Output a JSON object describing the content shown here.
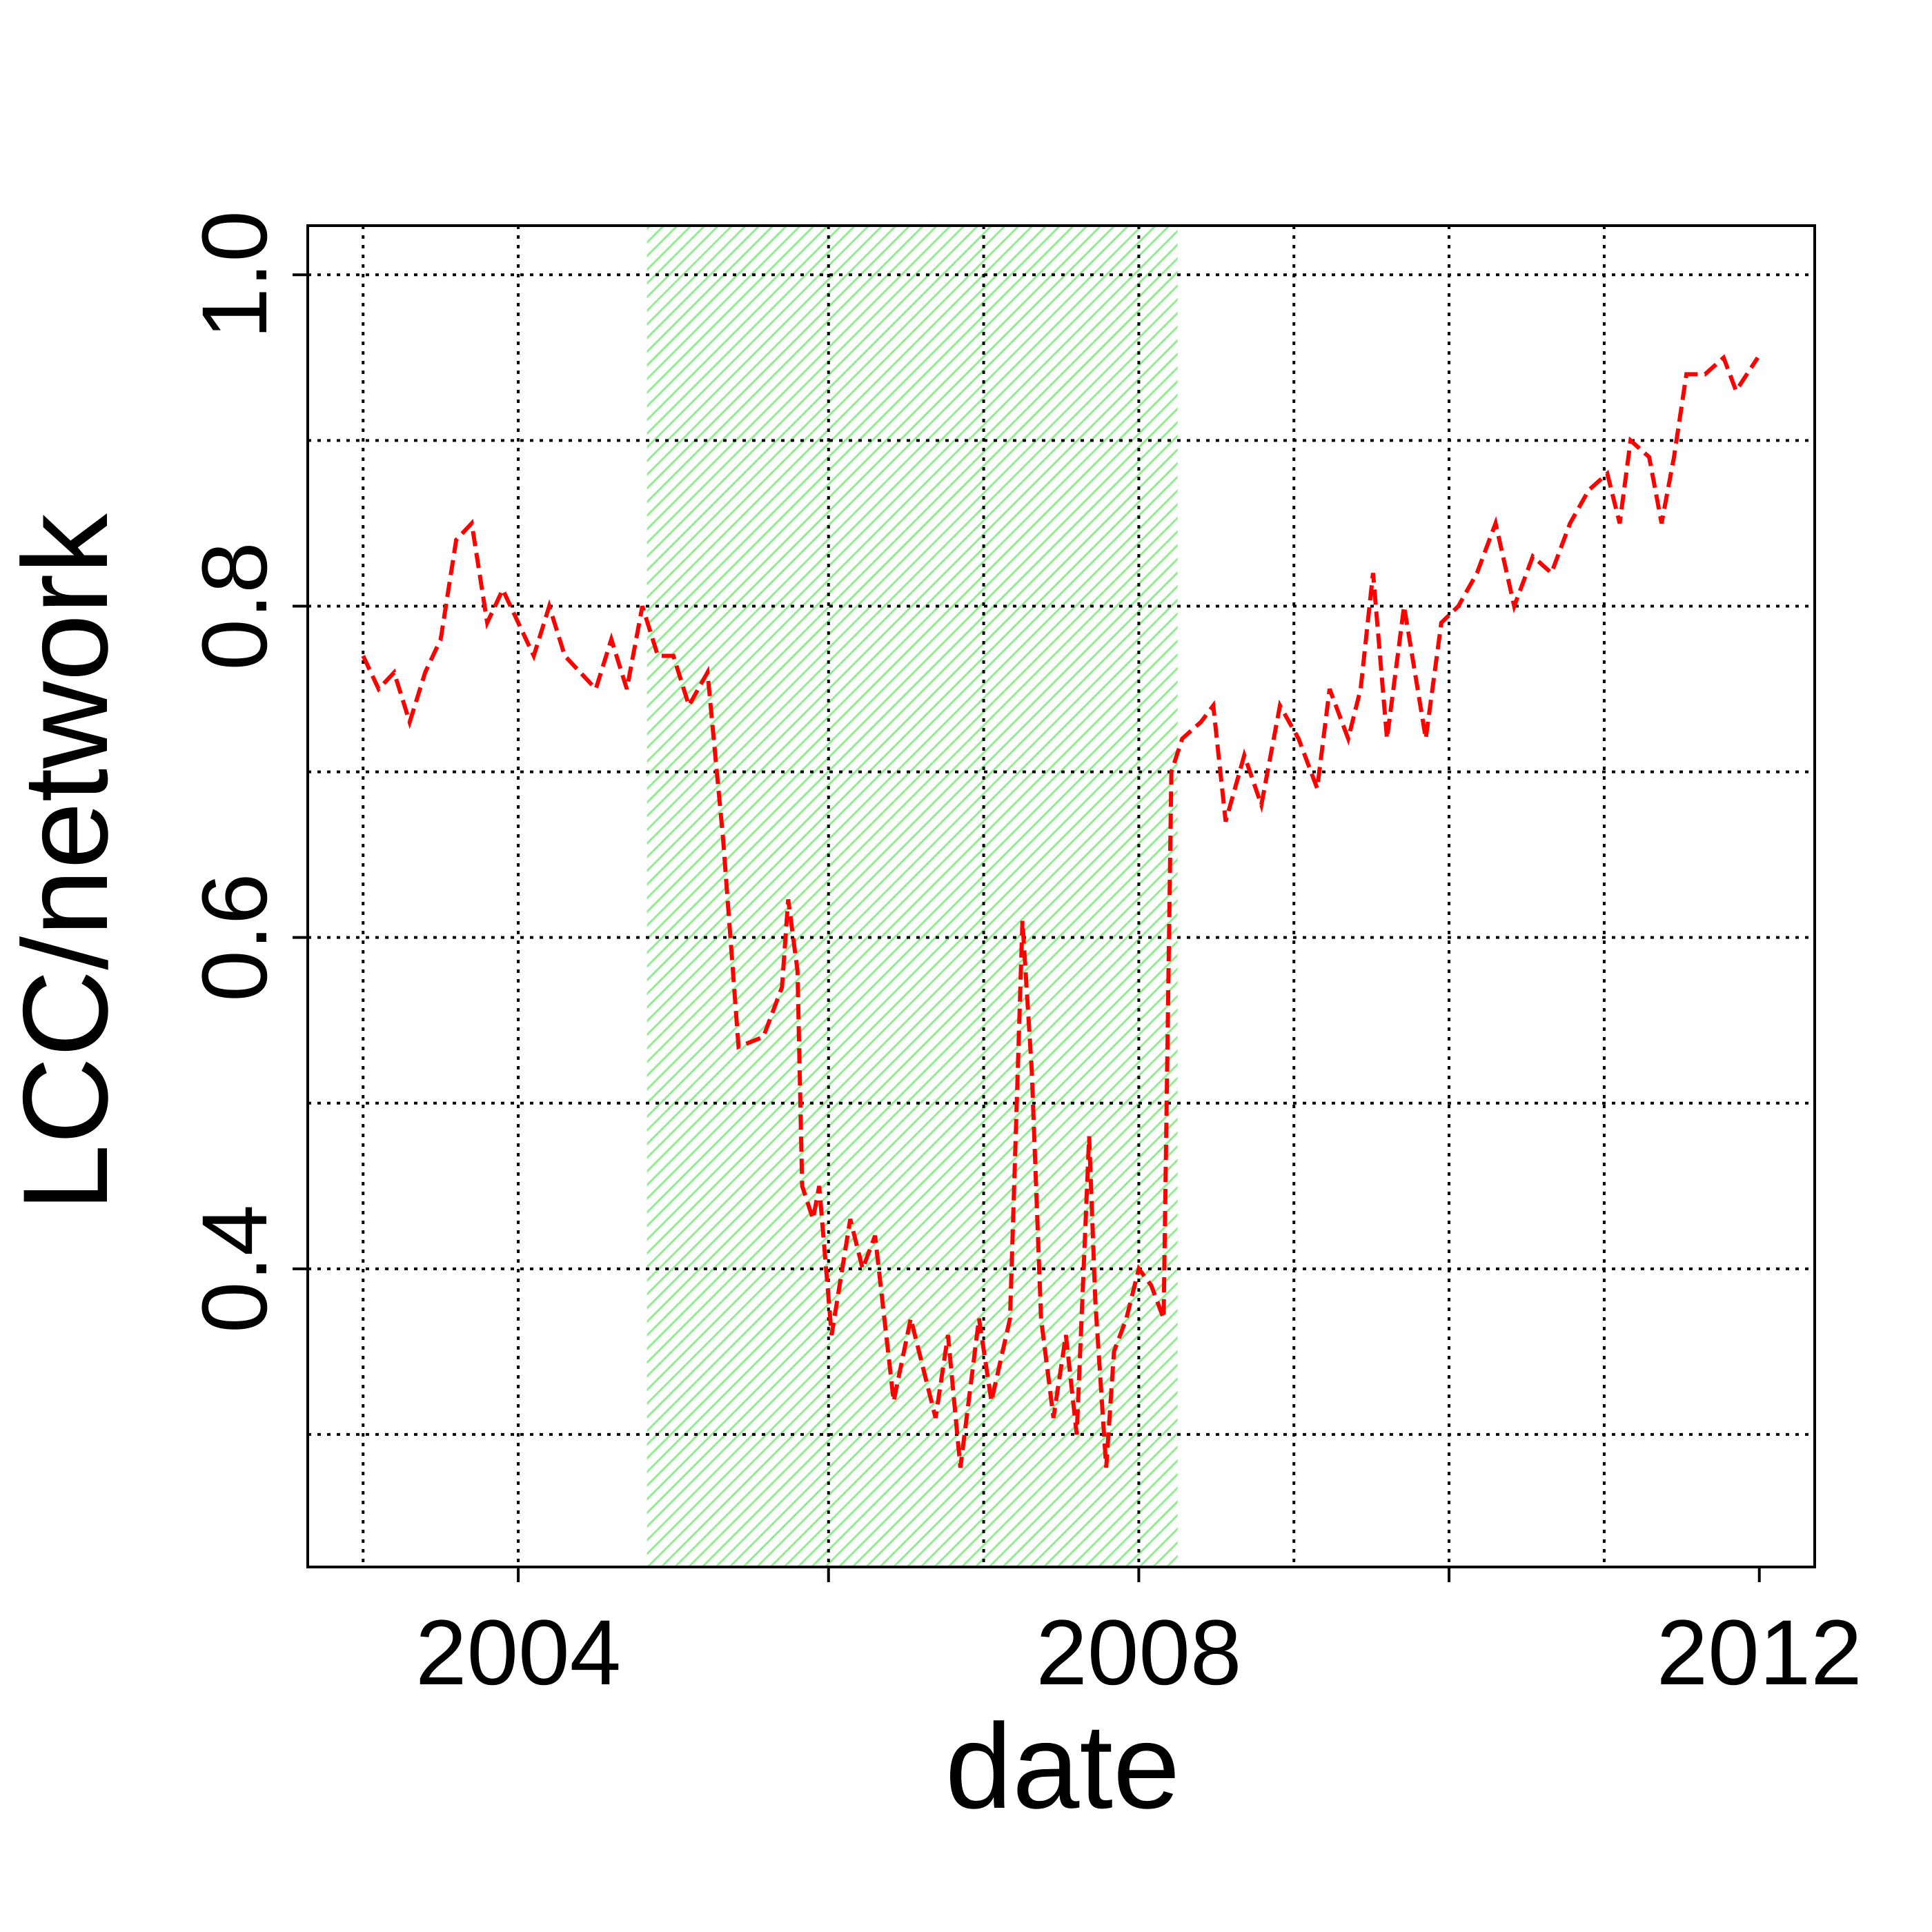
{
  "chart_data": {
    "type": "line",
    "x_label": "date",
    "y_label": "LCC/network",
    "xlim": [
      2002.643,
      2012.357
    ],
    "ylim": [
      0.22,
      1.0297
    ],
    "xticks": [
      2004,
      2008,
      2012
    ],
    "x_minor_ticks": [
      2006,
      2010
    ],
    "yticks": [
      0.4,
      0.6,
      0.8,
      {
        "value": 1.0,
        "label": "1.0"
      }
    ],
    "x_grid": [
      2003,
      2004,
      2006,
      2007,
      2008,
      2009,
      2010,
      2011
    ],
    "y_grid": [
      0.3,
      0.4,
      0.5,
      0.6,
      0.7,
      0.8,
      0.9,
      1.0
    ],
    "shade": [
      2004.83,
      2008.25
    ],
    "shade_color": "#90ee90",
    "series": [
      {
        "color": "#ff0000",
        "x": [
          2003.0,
          2003.1,
          2003.2,
          2003.3,
          2003.4,
          2003.5,
          2003.6,
          2003.7,
          2003.8,
          2003.9,
          2004.0,
          2004.1,
          2004.2,
          2004.3,
          2004.4,
          2004.5,
          2004.6,
          2004.7,
          2004.8,
          2004.9,
          2005.0,
          2005.1,
          2005.22,
          2005.32,
          2005.42,
          2005.58,
          2005.7,
          2005.74,
          2005.8,
          2005.83,
          2005.9,
          2005.94,
          2006.02,
          2006.14,
          2006.22,
          2006.3,
          2006.42,
          2006.53,
          2006.69,
          2006.77,
          2006.85,
          2006.97,
          2007.05,
          2007.17,
          2007.25,
          2007.31,
          2007.37,
          2007.45,
          2007.53,
          2007.6,
          2007.68,
          2007.72,
          2007.79,
          2007.84,
          2007.92,
          2008.0,
          2008.08,
          2008.16,
          2008.21,
          2008.28,
          2008.4,
          2008.48,
          2008.56,
          2008.68,
          2008.79,
          2008.91,
          2009.03,
          2009.15,
          2009.23,
          2009.35,
          2009.43,
          2009.51,
          2009.6,
          2009.71,
          2009.85,
          2009.95,
          2010.06,
          2010.18,
          2010.3,
          2010.42,
          2010.54,
          2010.66,
          2010.78,
          2010.9,
          2011.02,
          2011.1,
          2011.17,
          2011.29,
          2011.37,
          2011.45,
          2011.53,
          2011.65,
          2011.77,
          2011.85,
          2011.99
        ],
        "values": [
          0.77,
          0.75,
          0.76,
          0.73,
          0.76,
          0.78,
          0.84,
          0.85,
          0.79,
          0.81,
          0.79,
          0.77,
          0.8,
          0.77,
          0.76,
          0.75,
          0.78,
          0.75,
          0.8,
          0.77,
          0.77,
          0.74,
          0.76,
          0.66,
          0.534,
          0.54,
          0.57,
          0.623,
          0.58,
          0.45,
          0.43,
          0.45,
          0.36,
          0.43,
          0.4,
          0.42,
          0.32,
          0.37,
          0.31,
          0.36,
          0.28,
          0.37,
          0.32,
          0.37,
          0.61,
          0.52,
          0.37,
          0.31,
          0.36,
          0.3,
          0.48,
          0.38,
          0.28,
          0.35,
          0.37,
          0.4,
          0.39,
          0.37,
          0.7,
          0.72,
          0.73,
          0.74,
          0.67,
          0.71,
          0.68,
          0.74,
          0.72,
          0.69,
          0.75,
          0.72,
          0.75,
          0.82,
          0.72,
          0.8,
          0.72,
          0.79,
          0.8,
          0.82,
          0.85,
          0.8,
          0.83,
          0.82,
          0.85,
          0.87,
          0.88,
          0.85,
          0.9,
          0.89,
          0.85,
          0.89,
          0.94,
          0.94,
          0.95,
          0.93,
          0.95
        ]
      }
    ]
  }
}
